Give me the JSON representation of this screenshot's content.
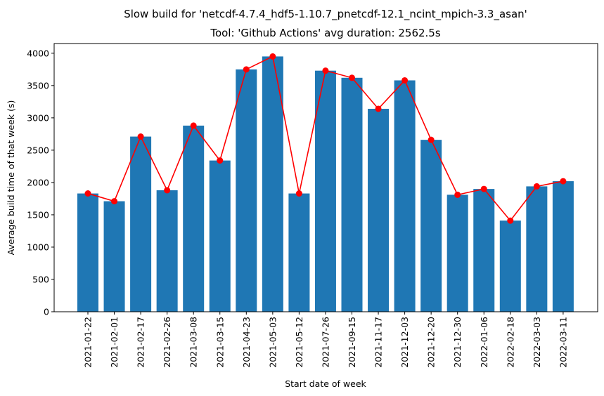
{
  "chart_data": {
    "type": "bar",
    "suptitle": "Slow build for 'netcdf-4.7.4_hdf5-1.10.7_pnetcdf-12.1_ncint_mpich-3.3_asan'",
    "title": "Tool: 'Github Actions' avg duration: 2562.5s",
    "xlabel": "Start date of week",
    "ylabel": "Average build time of that week (s)",
    "ylim": [
      0,
      4150
    ],
    "yticks": [
      0,
      500,
      1000,
      1500,
      2000,
      2500,
      3000,
      3500,
      4000
    ],
    "grid": false,
    "categories": [
      "2021-01-22",
      "2021-02-01",
      "2021-02-17",
      "2021-02-26",
      "2021-03-08",
      "2021-03-15",
      "2021-04-23",
      "2021-05-03",
      "2021-05-12",
      "2021-07-26",
      "2021-09-15",
      "2021-11-17",
      "2021-12-03",
      "2021-12-20",
      "2021-12-30",
      "2022-01-06",
      "2022-02-18",
      "2022-03-03",
      "2022-03-11"
    ],
    "values": [
      1830,
      1710,
      2710,
      1880,
      2880,
      2340,
      3750,
      3950,
      1830,
      3730,
      3620,
      3140,
      3580,
      2660,
      1810,
      1900,
      1410,
      1940,
      2020
    ],
    "colors": {
      "bar": "#1f77b4",
      "line": "#ff0000",
      "marker": "#ff0000"
    }
  }
}
